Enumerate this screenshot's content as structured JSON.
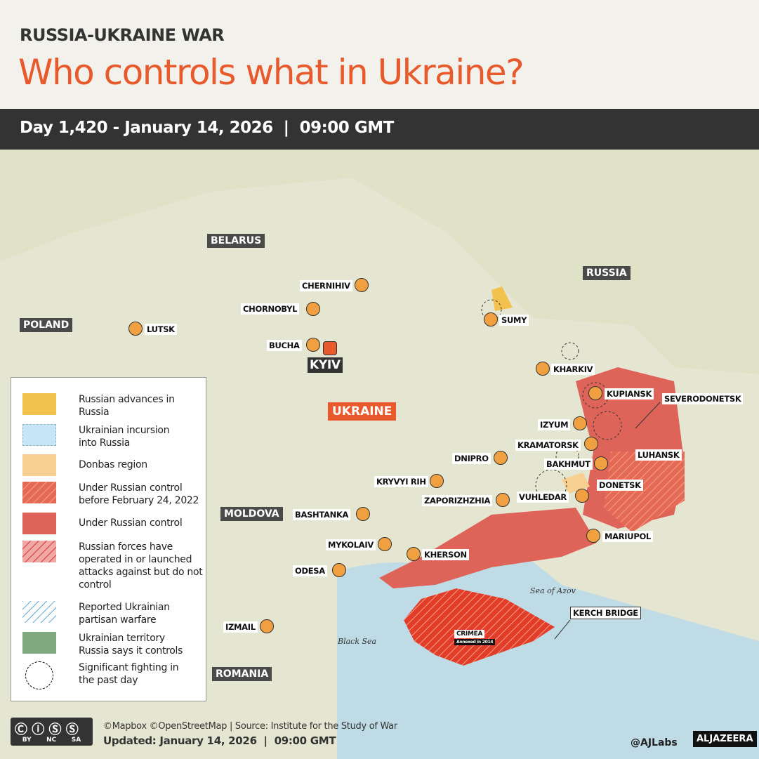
{
  "header": {
    "kicker": "RUSSIA-UKRAINE WAR",
    "title": "Who controls what in Ukraine?",
    "dateline": "Day 1,420 - January 14, 2026  |  09:00 GMT"
  },
  "countries": {
    "belarus": "BELARUS",
    "russia": "RUSSIA",
    "poland": "POLAND",
    "ukraine": "UKRAINE",
    "moldova": "MOLDOVA",
    "romania": "ROMANIA"
  },
  "seas": {
    "black": "Black Sea",
    "azov": "Sea of Azov"
  },
  "cities": {
    "chernihiv": "CHERNIHIV",
    "chornobyl": "CHORNOBYL",
    "lutsk": "LUTSK",
    "bucha": "BUCHA",
    "kyiv": "KYIV",
    "sumy": "SUMY",
    "kharkiv": "KHARKIV",
    "kupiansk": "KUPIANSK",
    "severodonetsk": "SEVERODONETSK",
    "izyum": "IZYUM",
    "kramatorsk": "KRAMATORSK",
    "bakhmut": "BAKHMUT",
    "luhansk": "LUHANSK",
    "dnipro": "DNIPRO",
    "kryvyi_rih": "KRYVYI RIH",
    "donetsk": "DONETSK",
    "vuhledar": "VUHLEDAR",
    "zaporizhzhia": "ZAPORIZHZHIA",
    "bashtanka": "BASHTANKA",
    "mariupol": "MARIUPOL",
    "mykolaiv": "MYKOLAIV",
    "kherson": "KHERSON",
    "odesa": "ODESA",
    "izmail": "IZMAIL",
    "kerch_bridge": "KERCH BRIDGE",
    "crimea": "CRIMEA",
    "crimea_note": "Annexed in 2014"
  },
  "legend": [
    {
      "label": "Russian advances in Russia",
      "color": "#f2c14e"
    },
    {
      "label": "Ukrainian incursion into Russia",
      "color": "#c6e6f7"
    },
    {
      "label": "Donbas region",
      "color": "#f7cf90"
    },
    {
      "label": "Under Russian control before February 24, 2022",
      "color": "#e46a55"
    },
    {
      "label": "Under Russian control",
      "color": "#de6459"
    },
    {
      "label": "Russian forces have operated in or launched attacks against but do not control",
      "color": "#e87a78"
    },
    {
      "label": "Reported Ukrainian partisan warfare",
      "color": "#5aa5d6"
    },
    {
      "label": "Ukrainian territory Russia says it controls",
      "color": "#7faa7f"
    },
    {
      "label": "Significant fighting in the past day",
      "color": "#000000"
    }
  ],
  "footer": {
    "credits": "©Mapbox ©OpenStreetMap | Source: Institute for the Study of War",
    "updated": "Updated: January 14, 2026  |  09:00 GMT",
    "handle": "@AJLabs",
    "brand": "ALJAZEERA",
    "license": [
      "BY",
      "NC",
      "SA"
    ]
  }
}
